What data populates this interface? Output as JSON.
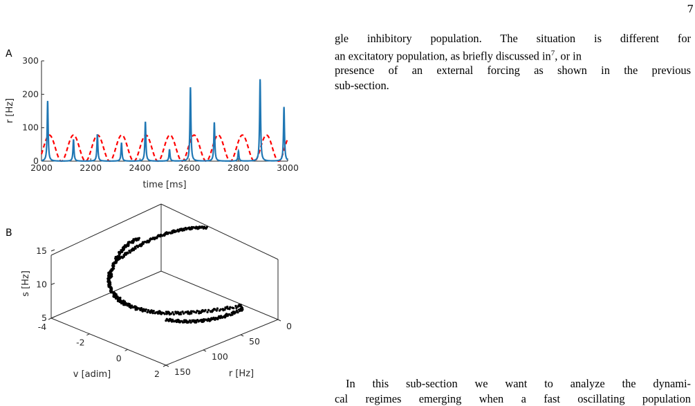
{
  "page": {
    "number": "7"
  },
  "figure": {
    "panel_a_letter": "A",
    "panel_b_letter": "B"
  },
  "chart_data": [
    {
      "type": "line",
      "panel": "A",
      "xlabel": "time [ms]",
      "ylabel": "r [Hz]",
      "xlim": [
        2000,
        3000
      ],
      "ylim": [
        0,
        300
      ],
      "xticks": [
        "2000",
        "2200",
        "2400",
        "2600",
        "2800",
        "3000"
      ],
      "yticks": [
        "0",
        "100",
        "200",
        "300"
      ],
      "grid": false,
      "series": [
        {
          "color": "#1f77b4",
          "style": "solid",
          "baseline": 0,
          "peaks": [
            {
              "t": 2025,
              "r": 180
            },
            {
              "t": 2130,
              "r": 65
            },
            {
              "t": 2227,
              "r": 80
            },
            {
              "t": 2325,
              "r": 55
            },
            {
              "t": 2422,
              "r": 118
            },
            {
              "t": 2520,
              "r": 35
            },
            {
              "t": 2605,
              "r": 221
            },
            {
              "t": 2702,
              "r": 116
            },
            {
              "t": 2800,
              "r": 30
            },
            {
              "t": 2888,
              "r": 245
            },
            {
              "t": 2985,
              "r": 162
            }
          ]
        },
        {
          "color": "#ff0000",
          "style": "dashed",
          "shape": "sinusoid",
          "min": 0,
          "max": 78,
          "period_ms": 98,
          "first_peak_ms": 2032
        }
      ]
    },
    {
      "type": "scatter",
      "panel": "B",
      "projection": "3d",
      "color": "#000000",
      "xlabel": "v [adim]",
      "ylabel": "r [Hz]",
      "zlabel": "s [Hz]",
      "xlim": [
        -4,
        2
      ],
      "ylim": [
        0,
        150
      ],
      "zlim": [
        5,
        15
      ],
      "xticks": [
        "-4",
        "-2",
        "0",
        "2"
      ],
      "yticks": [
        "0",
        "50",
        "100",
        "150"
      ],
      "zticks": [
        "5",
        "10",
        "15"
      ]
    }
  ],
  "text": {
    "para1_lines": [
      "gle inhibitory population.  The situation is different for",
      "an excitatory population, as briefly discussed in",
      "presence of an external forcing as shown in the previous",
      "sub-section."
    ],
    "ref_sup": "7",
    "ref_tail": ", or in",
    "para2_lines": [
      "In this sub-section we want to analyze the dynami-",
      "cal regimes emerging when a fast oscillating population"
    ]
  }
}
